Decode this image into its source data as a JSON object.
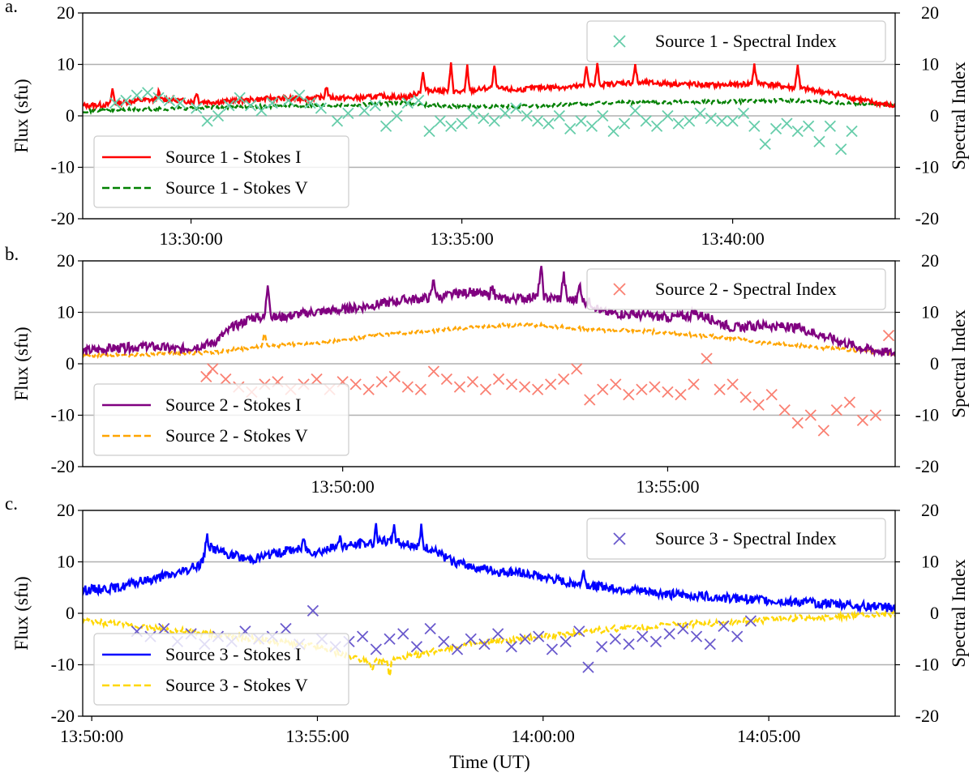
{
  "figure": {
    "xlabel": "Time (UT)",
    "left_ylabel": "Flux (sfu)",
    "right_ylabel": "Spectral Index",
    "colors": {
      "grid": "#b0b0b0",
      "legend_border": "#cccccc"
    }
  },
  "chart_data": [
    {
      "type": "line",
      "panel": "a.",
      "xlim_min": [
        28.0,
        43.0
      ],
      "ylim_left": [
        -20,
        20
      ],
      "ylim_right": [
        -20,
        20
      ],
      "yticks": [
        -20,
        -10,
        0,
        10,
        20
      ],
      "xticks": [
        {
          "value": 30,
          "label": "13:30:00"
        },
        {
          "value": 35,
          "label": "13:35:00"
        },
        {
          "value": 40,
          "label": "13:40:00"
        }
      ],
      "line_legend_position": "lower-left",
      "index_legend_position": "upper-right",
      "stokes_i": {
        "name": "Source 1 - Stokes I",
        "color": "#ff0000",
        "x": [
          28.0,
          28.5,
          29.0,
          29.5,
          30.0,
          30.5,
          31.0,
          31.5,
          32.0,
          32.5,
          33.0,
          33.5,
          34.0,
          34.3,
          34.5,
          35.0,
          35.5,
          36.0,
          36.5,
          37.0,
          37.5,
          38.0,
          38.5,
          39.0,
          39.5,
          40.0,
          40.5,
          41.0,
          41.5,
          42.0,
          42.5,
          43.0
        ],
        "values": [
          2.0,
          2.2,
          3.0,
          3.2,
          2.8,
          2.7,
          3.0,
          3.4,
          3.3,
          3.6,
          3.4,
          3.8,
          3.6,
          5.0,
          5.0,
          4.6,
          5.4,
          5.0,
          5.6,
          5.6,
          6.0,
          6.4,
          6.4,
          6.2,
          6.0,
          6.0,
          6.4,
          5.6,
          5.0,
          4.0,
          2.8,
          1.8
        ],
        "spikes": [
          {
            "x": 28.55,
            "value": 5.2
          },
          {
            "x": 29.4,
            "value": 4.6
          },
          {
            "x": 30.1,
            "value": 4.6
          },
          {
            "x": 32.5,
            "value": 5.8
          },
          {
            "x": 34.28,
            "value": 8.5
          },
          {
            "x": 34.8,
            "value": 10.0
          },
          {
            "x": 35.1,
            "value": 9.6
          },
          {
            "x": 35.6,
            "value": 9.8
          },
          {
            "x": 37.3,
            "value": 10.0
          },
          {
            "x": 37.5,
            "value": 10.0
          },
          {
            "x": 38.2,
            "value": 9.8
          },
          {
            "x": 40.4,
            "value": 10.0
          },
          {
            "x": 41.2,
            "value": 10.0
          }
        ]
      },
      "stokes_v": {
        "name": "Source 1 - Stokes V",
        "color": "#008000",
        "x": [
          28.0,
          29.0,
          30.0,
          31.0,
          32.0,
          33.0,
          34.0,
          34.5,
          35.0,
          36.0,
          37.0,
          38.0,
          39.0,
          40.0,
          41.0,
          42.0,
          43.0
        ],
        "values": [
          1.0,
          1.2,
          1.5,
          1.8,
          2.0,
          2.2,
          2.5,
          2.0,
          1.8,
          1.8,
          2.2,
          2.6,
          2.7,
          2.8,
          3.0,
          2.6,
          2.0
        ]
      },
      "spectral_index": {
        "name": "Source 1 - Spectral Index",
        "color": "#66cdaa",
        "x": [
          28.6,
          28.8,
          29.0,
          29.2,
          29.4,
          29.6,
          29.8,
          30.1,
          30.3,
          30.5,
          30.7,
          30.9,
          31.1,
          31.3,
          31.5,
          31.8,
          32.0,
          32.2,
          32.4,
          32.7,
          32.9,
          33.2,
          33.4,
          33.6,
          33.8,
          34.0,
          34.2,
          34.4,
          34.6,
          34.8,
          35.0,
          35.2,
          35.4,
          35.6,
          35.8,
          36.0,
          36.2,
          36.4,
          36.6,
          36.8,
          37.0,
          37.2,
          37.4,
          37.6,
          37.8,
          38.0,
          38.2,
          38.4,
          38.6,
          38.8,
          39.0,
          39.2,
          39.4,
          39.6,
          39.8,
          40.0,
          40.2,
          40.4,
          40.6,
          40.8,
          41.0,
          41.2,
          41.4,
          41.6,
          41.8,
          42.0,
          42.2
        ],
        "values": [
          2.5,
          3.0,
          4.0,
          4.5,
          3.5,
          3.0,
          2.5,
          1.5,
          -1.0,
          0.0,
          2.0,
          3.5,
          2.0,
          1.0,
          2.5,
          3.0,
          4.0,
          2.5,
          1.5,
          -1.0,
          0.5,
          1.0,
          2.0,
          -2.0,
          0.0,
          2.5,
          3.0,
          -3.0,
          -1.0,
          -2.0,
          -1.5,
          0.5,
          -0.5,
          -1.0,
          0.5,
          1.5,
          0.0,
          -1.0,
          -1.5,
          0.0,
          -2.5,
          -1.0,
          -2.0,
          0.0,
          -3.0,
          -1.5,
          1.0,
          -1.0,
          -2.0,
          0.0,
          -1.5,
          -1.0,
          0.5,
          -0.5,
          -1.0,
          -1.0,
          0.5,
          -2.0,
          -5.5,
          -2.5,
          -1.5,
          -3.0,
          -2.0,
          -5.0,
          -2.0,
          -6.5,
          -3.0
        ]
      },
      "legend_i": "Source 1 - Stokes I",
      "legend_v": "Source 1 - Stokes V",
      "legend_index": "Source 1 - Spectral Index"
    },
    {
      "type": "line",
      "panel": "b.",
      "xlim_min": [
        46.0,
        58.5
      ],
      "ylim_left": [
        -20,
        20
      ],
      "ylim_right": [
        -20,
        20
      ],
      "yticks": [
        -20,
        -10,
        0,
        10,
        20
      ],
      "xticks": [
        {
          "value": 50,
          "label": "13:50:00"
        },
        {
          "value": 55,
          "label": "13:55:00"
        }
      ],
      "line_legend_position": "lower-left",
      "index_legend_position": "upper-right",
      "stokes_i": {
        "name": "Source 2 - Stokes I",
        "color": "#800080",
        "x": [
          46.0,
          46.5,
          47.0,
          47.5,
          48.0,
          48.3,
          48.6,
          49.0,
          49.5,
          50.0,
          50.5,
          51.0,
          51.5,
          52.0,
          52.5,
          53.0,
          53.5,
          53.8,
          54.0,
          54.5,
          55.0,
          55.5,
          56.0,
          56.5,
          57.0,
          57.5,
          58.0,
          58.5
        ],
        "values": [
          2.5,
          3.0,
          3.4,
          2.8,
          4.0,
          7.0,
          9.0,
          9.0,
          10.0,
          10.5,
          11.5,
          12.5,
          13.0,
          14.0,
          12.5,
          13.0,
          12.5,
          12.0,
          10.0,
          9.5,
          9.0,
          9.5,
          7.0,
          7.5,
          7.0,
          5.0,
          3.0,
          2.0
        ],
        "spikes": [
          {
            "x": 48.85,
            "value": 16.0
          },
          {
            "x": 51.4,
            "value": 16.5
          },
          {
            "x": 52.3,
            "value": 15.0
          },
          {
            "x": 53.05,
            "value": 19.0
          },
          {
            "x": 53.4,
            "value": 17.5
          },
          {
            "x": 53.65,
            "value": 15.5
          },
          {
            "x": 55.4,
            "value": 10.5
          }
        ]
      },
      "stokes_v": {
        "name": "Source 2 - Stokes V",
        "color": "#ffa500",
        "x": [
          46.0,
          47.0,
          47.5,
          48.0,
          48.5,
          49.0,
          49.5,
          50.0,
          50.5,
          51.0,
          51.5,
          52.0,
          52.5,
          53.0,
          53.5,
          54.0,
          54.5,
          55.0,
          55.5,
          56.0,
          56.5,
          57.0,
          57.5,
          58.0,
          58.5
        ],
        "values": [
          1.5,
          1.8,
          2.0,
          2.2,
          3.0,
          3.5,
          4.0,
          4.5,
          5.5,
          6.0,
          6.5,
          7.0,
          7.5,
          7.5,
          7.0,
          6.5,
          6.5,
          6.0,
          5.5,
          5.0,
          4.0,
          3.5,
          3.0,
          2.5,
          2.0
        ],
        "spikes": [
          {
            "x": 48.8,
            "value": 6.0
          }
        ]
      },
      "spectral_index": {
        "name": "Source 2 - Spectral Index",
        "color": "#fa8072",
        "x": [
          47.9,
          48.0,
          48.2,
          48.4,
          48.6,
          48.8,
          49.0,
          49.2,
          49.4,
          49.6,
          49.8,
          50.0,
          50.2,
          50.4,
          50.6,
          50.8,
          51.0,
          51.2,
          51.4,
          51.6,
          51.8,
          52.0,
          52.2,
          52.4,
          52.6,
          52.8,
          53.0,
          53.2,
          53.4,
          53.6,
          53.8,
          54.0,
          54.2,
          54.4,
          54.6,
          54.8,
          55.0,
          55.2,
          55.4,
          55.6,
          55.8,
          56.0,
          56.2,
          56.4,
          56.6,
          56.8,
          57.0,
          57.2,
          57.4,
          57.6,
          57.8,
          58.0,
          58.2,
          58.4
        ],
        "values": [
          -2.5,
          -1.0,
          -3.0,
          -4.5,
          -5.5,
          -4.0,
          -3.5,
          -5.0,
          -4.0,
          -3.0,
          -5.0,
          -3.5,
          -4.0,
          -5.0,
          -3.5,
          -2.5,
          -4.5,
          -5.0,
          -1.5,
          -3.0,
          -4.5,
          -3.5,
          -5.0,
          -3.0,
          -4.0,
          -4.5,
          -5.0,
          -4.0,
          -3.0,
          -1.0,
          -7.0,
          -5.0,
          -4.0,
          -6.0,
          -5.0,
          -4.5,
          -5.5,
          -6.0,
          -4.0,
          1.0,
          -5.0,
          -4.0,
          -6.5,
          -8.0,
          -6.0,
          -9.0,
          -11.5,
          -10.0,
          -13.0,
          -9.0,
          -7.5,
          -11.0,
          -10.0,
          5.5
        ]
      },
      "legend_i": "Source 2 - Stokes I",
      "legend_v": "Source 2 - Stokes V",
      "legend_index": "Source 2 - Spectral Index"
    },
    {
      "type": "line",
      "panel": "c.",
      "xlim_min": [
        49.8,
        67.8
      ],
      "ylim_left": [
        -20,
        20
      ],
      "ylim_right": [
        -20,
        20
      ],
      "yticks": [
        -20,
        -10,
        0,
        10,
        20
      ],
      "xticks": [
        {
          "value": 50,
          "label": "13:50:00"
        },
        {
          "value": 55,
          "label": "13:55:00"
        },
        {
          "value": 60,
          "label": "14:00:00"
        },
        {
          "value": 65,
          "label": "14:05:00"
        }
      ],
      "line_legend_position": "lower-left",
      "index_legend_position": "upper-right",
      "stokes_i": {
        "name": "Source 3 - Stokes I",
        "color": "#0000ff",
        "x": [
          49.8,
          50.2,
          50.6,
          51.0,
          51.5,
          52.0,
          52.4,
          52.6,
          53.0,
          53.5,
          54.0,
          54.5,
          55.0,
          55.5,
          56.0,
          56.5,
          57.0,
          57.5,
          58.0,
          58.5,
          59.0,
          59.5,
          60.0,
          60.5,
          61.0,
          61.5,
          62.0,
          62.5,
          63.0,
          63.5,
          64.0,
          64.5,
          65.0,
          65.5,
          66.0,
          66.5,
          67.0,
          67.8
        ],
        "values": [
          4.5,
          4.8,
          5.0,
          6.0,
          7.0,
          8.0,
          9.5,
          13.0,
          11.5,
          10.5,
          11.5,
          12.5,
          12.0,
          13.0,
          13.5,
          14.0,
          13.5,
          12.5,
          10.0,
          9.0,
          8.0,
          8.0,
          7.0,
          6.0,
          5.5,
          5.0,
          4.5,
          4.0,
          3.5,
          3.5,
          3.0,
          2.8,
          2.5,
          2.2,
          2.0,
          1.8,
          1.5,
          1.0
        ],
        "spikes": [
          {
            "x": 52.55,
            "value": 15.5
          },
          {
            "x": 54.7,
            "value": 15.0
          },
          {
            "x": 55.5,
            "value": 15.5
          },
          {
            "x": 56.3,
            "value": 17.5
          },
          {
            "x": 56.7,
            "value": 18.0
          },
          {
            "x": 57.3,
            "value": 16.5
          },
          {
            "x": 60.9,
            "value": 9.0
          }
        ]
      },
      "stokes_v": {
        "name": "Source 3 - Stokes V",
        "color": "#ffd700",
        "x": [
          49.8,
          50.5,
          51.0,
          51.5,
          52.0,
          52.5,
          53.0,
          53.5,
          54.0,
          54.5,
          55.0,
          55.5,
          56.0,
          56.5,
          57.0,
          57.5,
          58.0,
          58.5,
          59.0,
          59.5,
          60.0,
          60.5,
          61.0,
          61.5,
          62.0,
          62.5,
          63.0,
          63.5,
          64.0,
          64.5,
          65.0,
          65.5,
          66.0,
          66.5,
          67.0,
          67.8
        ],
        "values": [
          -1.5,
          -2.0,
          -2.5,
          -3.0,
          -3.5,
          -4.0,
          -4.5,
          -5.0,
          -5.5,
          -6.0,
          -6.5,
          -8.0,
          -9.0,
          -9.5,
          -8.5,
          -7.5,
          -6.5,
          -6.0,
          -5.5,
          -5.0,
          -4.5,
          -4.0,
          -3.5,
          -3.0,
          -2.8,
          -2.5,
          -2.2,
          -2.0,
          -1.8,
          -1.5,
          -1.2,
          -1.0,
          -0.8,
          -0.6,
          -0.5,
          -0.2
        ],
        "spikes": [
          {
            "x": 56.6,
            "value": -12.5
          },
          {
            "x": 56.2,
            "value": -11.5
          }
        ]
      },
      "spectral_index": {
        "name": "Source 3 - Spectral Index",
        "color": "#6a5acd",
        "x": [
          51.0,
          51.3,
          51.6,
          51.9,
          52.2,
          52.5,
          52.8,
          53.1,
          53.4,
          53.7,
          54.0,
          54.3,
          54.6,
          54.9,
          55.1,
          55.4,
          55.7,
          56.0,
          56.3,
          56.6,
          56.9,
          57.2,
          57.5,
          57.8,
          58.1,
          58.4,
          58.7,
          59.0,
          59.3,
          59.6,
          59.9,
          60.2,
          60.5,
          60.8,
          61.0,
          61.3,
          61.6,
          61.9,
          62.2,
          62.5,
          62.8,
          63.1,
          63.4,
          63.7,
          64.0,
          64.3,
          64.6
        ],
        "values": [
          -3.5,
          -4.5,
          -3.0,
          -5.5,
          -4.0,
          -6.0,
          -4.5,
          -5.5,
          -3.5,
          -5.0,
          -4.5,
          -3.0,
          -6.0,
          0.5,
          -5.0,
          -6.5,
          -5.5,
          -4.5,
          -7.0,
          -5.0,
          -4.0,
          -6.5,
          -3.0,
          -5.5,
          -7.0,
          -5.0,
          -6.0,
          -4.0,
          -6.5,
          -5.0,
          -4.5,
          -7.0,
          -5.5,
          -3.5,
          -10.5,
          -6.5,
          -5.0,
          -6.0,
          -4.5,
          -5.5,
          -4.0,
          -3.0,
          -4.5,
          -6.0,
          -2.5,
          -4.5,
          -1.5
        ]
      },
      "legend_i": "Source 3 - Stokes I",
      "legend_v": "Source 3 - Stokes V",
      "legend_index": "Source 3 - Spectral Index"
    }
  ]
}
